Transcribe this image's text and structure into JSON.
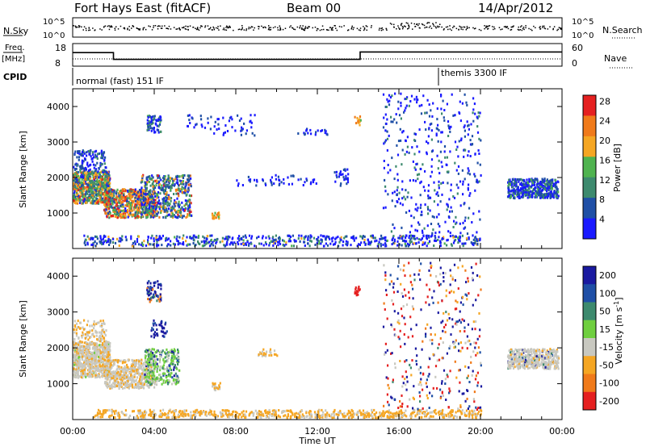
{
  "header": {
    "title": "Fort Hays East (fitACF)",
    "beam": "Beam 00",
    "date": "14/Apr/2012"
  },
  "noise_panel": {
    "left_label": "N.Sky",
    "right_label": "N.Search",
    "left_ticks": [
      "10^5",
      "10^0"
    ],
    "right_ticks": [
      "10^5",
      "10^0"
    ]
  },
  "freq_panel": {
    "left_label_top": "Freq.",
    "left_label_bottom": "[MHz]",
    "left_ticks": [
      "18",
      "8"
    ],
    "right_ticks": [
      "60",
      "0"
    ],
    "right_label": "Nave",
    "freq_series": {
      "x": [
        0,
        2,
        2,
        14.1,
        14.1,
        24
      ],
      "y": [
        14,
        14,
        11,
        11,
        14.3,
        14.3
      ]
    },
    "nave_series": {
      "x": [
        0,
        2,
        2,
        14.1,
        14.1,
        24
      ],
      "y": [
        8,
        8,
        8,
        8,
        8,
        8
      ]
    }
  },
  "cpid": {
    "label": "CPID",
    "segments": [
      {
        "start": 0,
        "end": 18,
        "text": "normal (fast) 151 IF"
      },
      {
        "start": 18,
        "end": 24,
        "text": "themis 3300 IF"
      }
    ]
  },
  "chart_data": [
    {
      "type": "heatmap",
      "name": "power",
      "ylabel": "Slant Range [km]",
      "xlabel": "Time UT",
      "xlim": [
        0,
        24
      ],
      "ylim": [
        0,
        4500
      ],
      "yticks": [
        "1000",
        "2000",
        "3000",
        "4000"
      ],
      "xticks": [
        "00:00",
        "04:00",
        "08:00",
        "12:00",
        "16:00",
        "20:00",
        "00:00"
      ],
      "colorbar": {
        "label": "Power [dB]",
        "labels": [
          "4",
          "8",
          "12",
          "16",
          "20",
          "24",
          "28"
        ],
        "colors": [
          "#1a1aff",
          "#1f4fa6",
          "#3d8a6e",
          "#4fb34f",
          "#f5a623",
          "#f07a1a",
          "#e52020"
        ]
      }
    },
    {
      "type": "heatmap",
      "name": "velocity",
      "ylabel": "Slant Range [km]",
      "xlabel": "Time UT",
      "xlim": [
        0,
        24
      ],
      "ylim": [
        0,
        4500
      ],
      "yticks": [
        "1000",
        "2000",
        "3000",
        "4000"
      ],
      "xticks": [
        "00:00",
        "04:00",
        "08:00",
        "12:00",
        "16:00",
        "20:00",
        "00:00"
      ],
      "colorbar": {
        "label": "Velocity [m s^-1]",
        "labels": [
          "200",
          "100",
          "50",
          "15",
          "-15",
          "-50",
          "-100",
          "-200"
        ],
        "colors": [
          "#1a1aa0",
          "#1f4fa6",
          "#3d8a6e",
          "#6fcf3f",
          "#c8c8c0",
          "#f5a623",
          "#f07a1a",
          "#e52020"
        ]
      }
    }
  ],
  "axis": {
    "xlabel": "Time UT"
  }
}
